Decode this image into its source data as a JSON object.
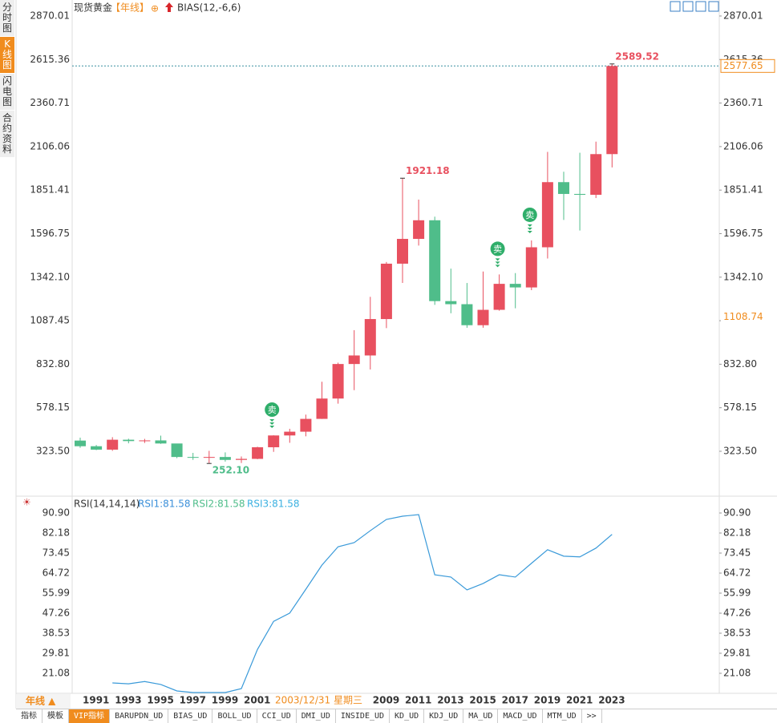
{
  "header": {
    "title": "现货黄金",
    "period": "【年线】",
    "icon": "⊕",
    "indicator": "BIAS(12,-6,6)"
  },
  "sidebar": [
    "分时图",
    "K线图",
    "闪电图",
    "合约资料"
  ],
  "chart_data": {
    "type": "candlestick",
    "categories": [
      "1991",
      null,
      "1993",
      null,
      "1995",
      null,
      "1997",
      null,
      "1999",
      null,
      "2001",
      null,
      null,
      null,
      null,
      null,
      null,
      null,
      "2009",
      null,
      "2011",
      null,
      "2013",
      null,
      "2015",
      null,
      "2017",
      null,
      "2019",
      null,
      "2021",
      null,
      "2023",
      null
    ],
    "open": [
      386,
      353,
      333,
      391,
      383,
      387,
      369,
      290,
      288,
      290,
      273,
      279,
      347,
      416,
      438,
      513,
      632,
      834,
      884,
      1097,
      1421,
      1566,
      1675,
      1202,
      1184,
      1061,
      1151,
      1303,
      1282,
      1517,
      1898,
      1829,
      1824,
      2062
    ],
    "high": [
      403,
      360,
      406,
      397,
      396,
      415,
      367,
      314,
      326,
      317,
      293,
      350,
      417,
      455,
      538,
      730,
      842,
      1032,
      1227,
      1431,
      1921.18,
      1796,
      1696,
      1392,
      1308,
      1375,
      1358,
      1366,
      1557,
      2075,
      1959,
      2070,
      2135,
      2589.52
    ],
    "low": [
      344,
      330,
      326,
      370,
      372,
      367,
      283,
      273,
      252.1,
      263,
      255,
      277,
      320,
      373,
      411,
      513,
      602,
      681,
      802,
      1044,
      1308,
      1527,
      1180,
      1131,
      1046,
      1046,
      1146,
      1160,
      1266,
      1451,
      1677,
      1615,
      1805,
      1984
    ],
    "close": [
      353,
      333,
      391,
      383,
      387,
      369,
      290,
      288,
      290,
      273,
      279,
      347,
      416,
      438,
      513,
      632,
      834,
      884,
      1097,
      1421,
      1566,
      1675,
      1202,
      1184,
      1061,
      1151,
      1303,
      1282,
      1517,
      1898,
      1829,
      1824,
      2062,
      2577.65
    ],
    "high_labels": [
      null,
      null,
      null,
      null,
      null,
      null,
      null,
      null,
      null,
      null,
      null,
      null,
      null,
      null,
      null,
      null,
      null,
      null,
      null,
      null,
      "1921.18",
      null,
      null,
      null,
      null,
      null,
      null,
      null,
      null,
      null,
      null,
      null,
      null,
      "2589.52"
    ],
    "low_labels": [
      null,
      null,
      null,
      null,
      null,
      null,
      null,
      null,
      "252.10",
      null,
      null,
      null,
      null,
      null,
      null,
      null,
      null,
      null,
      null,
      null,
      null,
      null,
      null,
      null,
      null,
      null,
      null,
      null,
      null,
      null,
      null,
      null,
      null,
      null
    ],
    "signals": [
      null,
      null,
      null,
      null,
      null,
      null,
      null,
      null,
      null,
      null,
      null,
      null,
      "卖",
      null,
      null,
      null,
      null,
      null,
      null,
      null,
      null,
      null,
      null,
      null,
      null,
      null,
      "卖",
      null,
      "卖",
      null,
      null,
      null,
      null,
      null
    ],
    "up_color": "#e8505f",
    "down_color": "#4fbd8a",
    "ylim": [
      79.6,
      2893.3
    ],
    "yticks": [
      2870.01,
      2615.36,
      2360.71,
      2106.06,
      1851.41,
      1596.75,
      {
        "value": 1342.1,
        "label": "1342.10"
      },
      1087.45,
      {
        "value": 832.8,
        "label": "832.80"
      },
      578.15,
      {
        "value": 323.5,
        "label": "323.50"
      }
    ],
    "last_price": 2577.65,
    "cursor_price": 1108.74,
    "cursor_date": "2003/12/31 星期三",
    "period_button": "年线 ▲",
    "rsi": {
      "title": "RSI(14,14,14)",
      "legend": [
        {
          "label": "RSI1:81.58",
          "color": "#3a8fd9"
        },
        {
          "label": "RSI2:81.58",
          "color": "#4fbd8a"
        },
        {
          "label": "RSI3:81.58",
          "color": "#3ab0e0"
        }
      ],
      "color": "#3a9ad9",
      "values": [
        null,
        null,
        16.9,
        16.5,
        17.5,
        16.2,
        13.4,
        12.7,
        12.7,
        12.7,
        14.4,
        31.5,
        43.7,
        47.3,
        57.7,
        68.2,
        76.2,
        78.0,
        83.2,
        88.1,
        89.5,
        90.2,
        64.0,
        63.0,
        57.4,
        60.2,
        64.0,
        63.0,
        69.0,
        74.9,
        72.1,
        71.8,
        75.6,
        81.58
      ],
      "ylim": [
        12.35,
        96.14
      ],
      "yticks": [
        {
          "value": 90.9,
          "label": "90.90"
        },
        82.18,
        73.45,
        64.72,
        55.99,
        47.26,
        38.53,
        29.81,
        21.08
      ]
    }
  },
  "bottom_tabs": [
    "指标",
    "模板",
    "VIP指标",
    "BARUPDN_UD",
    "BIAS_UD",
    "BOLL_UD",
    "CCI_UD",
    "DMI_UD",
    "INSIDE_UD",
    "KD_UD",
    "KDJ_UD",
    "MA_UD",
    "MACD_UD",
    "MTM_UD",
    ">>"
  ]
}
